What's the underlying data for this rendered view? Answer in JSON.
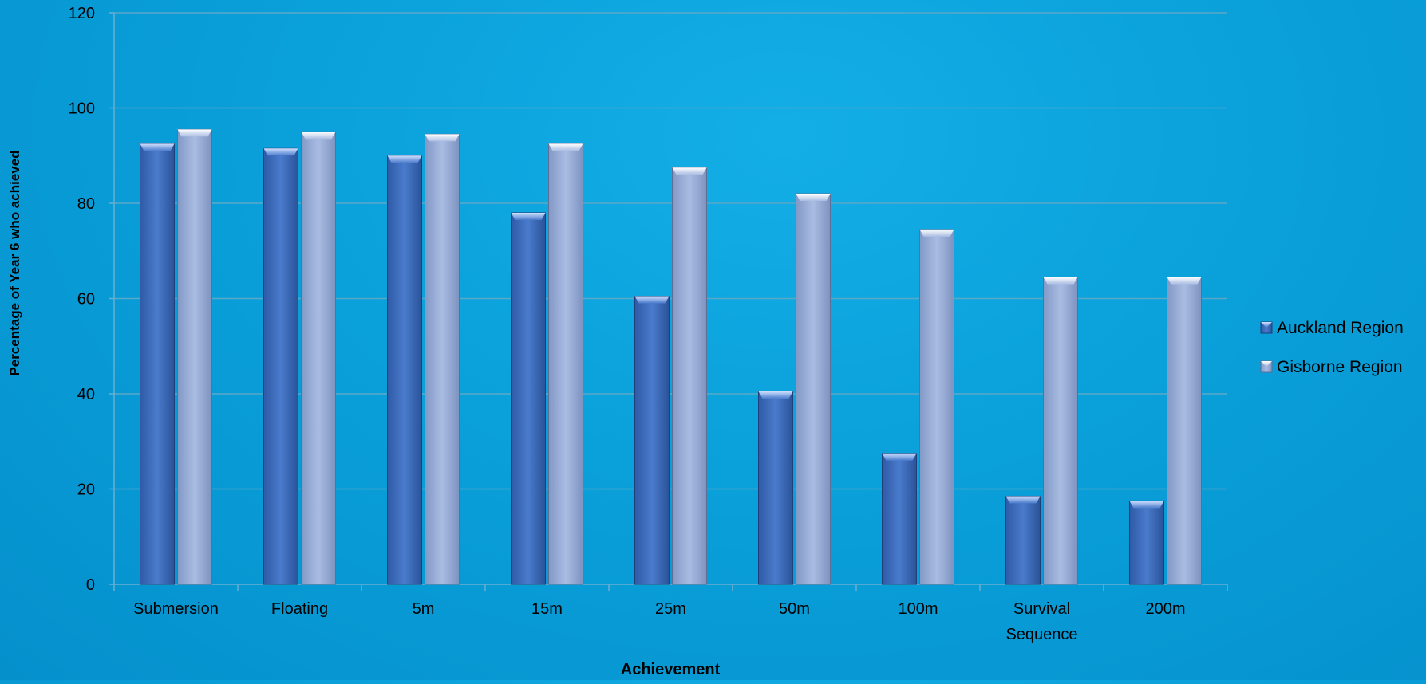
{
  "chart_data": {
    "type": "bar",
    "title": "",
    "xlabel": "Achievement",
    "ylabel": "Percentage of Year 6  who achieved",
    "ylim": [
      0,
      120
    ],
    "yticks": [
      0,
      20,
      40,
      60,
      80,
      100,
      120
    ],
    "grid": true,
    "legend_position": "right",
    "categories": [
      "Submersion",
      "Floating",
      "5m",
      "15m",
      "25m",
      "50m",
      "100m",
      "Survival Sequence",
      "200m"
    ],
    "series": [
      {
        "name": "Auckland Region",
        "color": "#3f6fbf",
        "values": [
          92.5,
          91.5,
          90,
          78,
          60.5,
          40.5,
          27.5,
          18.5,
          17.5
        ]
      },
      {
        "name": "Gisborne Region",
        "color": "#9aaed8",
        "values": [
          95.5,
          95,
          94.5,
          92.5,
          87.5,
          82,
          74.5,
          64.5,
          64.5
        ]
      }
    ],
    "colors": {
      "background": "#0aa0da",
      "gridline": "#5aa8c8",
      "axis_text": "#000000"
    }
  }
}
